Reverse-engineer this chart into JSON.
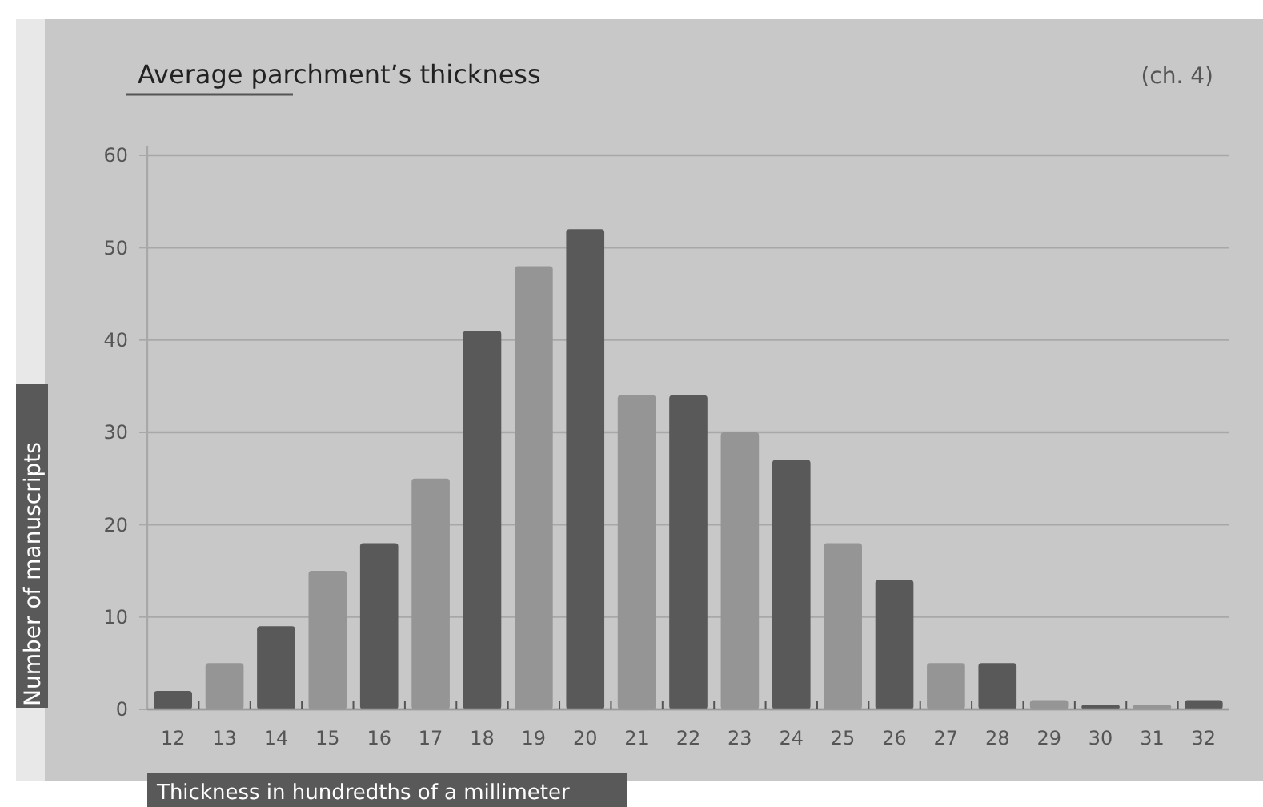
{
  "chart_data": {
    "type": "bar",
    "title": "Average parchment’s thickness",
    "xlabel": "Thickness in hundredths of a millimeter",
    "ylabel": "Number of manuscripts",
    "annotations": [
      "(ch. 4)"
    ],
    "categories": [
      "12",
      "13",
      "14",
      "15",
      "16",
      "17",
      "18",
      "19",
      "20",
      "21",
      "22",
      "23",
      "24",
      "25",
      "26",
      "27",
      "28",
      "29",
      "30",
      "31",
      "32"
    ],
    "values": [
      2,
      5,
      9,
      15,
      18,
      25,
      41,
      48,
      52,
      34,
      34,
      30,
      27,
      18,
      14,
      5,
      5,
      1,
      0.5,
      0.5,
      1
    ],
    "colors": [
      "#595959",
      "#959595",
      "#595959",
      "#959595",
      "#595959",
      "#959595",
      "#595959",
      "#959595",
      "#595959",
      "#959595",
      "#595959",
      "#959595",
      "#595959",
      "#959595",
      "#595959",
      "#959595",
      "#595959",
      "#959595",
      "#595959",
      "#959595",
      "#595959"
    ],
    "ylim": [
      0,
      60
    ],
    "yticks": [
      0,
      10,
      20,
      30,
      40,
      50,
      60
    ],
    "grid": "y"
  }
}
